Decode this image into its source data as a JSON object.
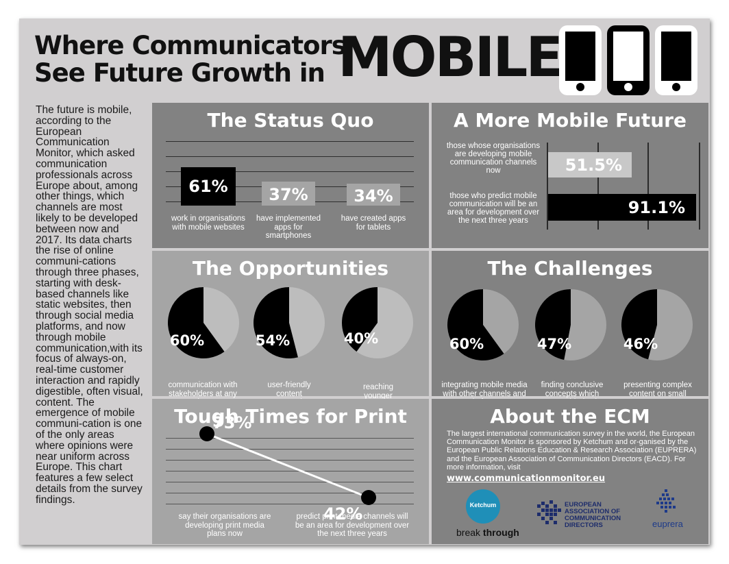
{
  "title": {
    "line1": "Where Communicators",
    "line2": "See Future Growth in",
    "highlight": "MOBILE"
  },
  "sidebar_text": "The future is mobile, according to the European Communication Monitor, which asked communication professionals across Europe about, among other things, which channels are most likely to be developed between now and 2017. Its data charts the rise of online communi-cations through three phases, starting with desk-based channels like static websites, then through social media platforms, and now through mobile communication,with its focus of always-on, real-time customer interaction and rapidly digestible, often visual, content. The emergence of mobile communi-cation is one of the only areas where opinions were near uniform across Europe. This chart features a few select details from the survey findings.",
  "colors": {
    "panel_dark": "#828282",
    "panel_light": "#a5a5a5",
    "black": "#000000",
    "light_bar": "#c8c8c8"
  },
  "icons": [
    "phone-icon-white",
    "phone-icon-black",
    "phone-icon-white"
  ],
  "chart_data": [
    {
      "type": "bar",
      "title": "The Status Quo",
      "categories": [
        "work in organisations with mobile websites",
        "have implemented apps for smartphones",
        "have created apps for tablets"
      ],
      "values": [
        61,
        37,
        34
      ],
      "labels": [
        "61%",
        "37%",
        "34%"
      ],
      "ylim": [
        0,
        100
      ]
    },
    {
      "type": "bar",
      "title": "A More Mobile Future",
      "orientation": "horizontal",
      "categories": [
        "those whose organisations are developing mobile communication channels now",
        "those who predict mobile communication will be an area for development over the next three years"
      ],
      "values": [
        51.5,
        91.1
      ],
      "labels": [
        "51.5%",
        "91.1%"
      ],
      "xlim": [
        0,
        100
      ]
    },
    {
      "type": "pie",
      "title": "The Opportunities",
      "categories": [
        "communication with stakeholders at any time",
        "user-friendly content presentation",
        "reaching younger publics"
      ],
      "values": [
        60,
        54,
        40
      ],
      "labels": [
        "60%",
        "54%",
        "40%"
      ]
    },
    {
      "type": "pie",
      "title": "The Challenges",
      "categories": [
        "integrating mobile media with other channels and platforms",
        "finding conclusive concepts which create added value",
        "presenting complex content on small screens"
      ],
      "values": [
        60,
        47,
        46
      ],
      "labels": [
        "60%",
        "47%",
        "46%"
      ]
    },
    {
      "type": "line",
      "title": "Tough Times for Print",
      "categories": [
        "say their organisations are developing print media plans now",
        "predict print media channels will be an area for development over the next three years"
      ],
      "values": [
        73,
        42
      ],
      "labels": [
        "73%",
        "42%"
      ],
      "ylim": [
        0,
        100
      ]
    }
  ],
  "about": {
    "title": "About the ECM",
    "text": "The largest international communication survey in the world, the European Communication Monitor is sponsored by Ketchum and or-ganised by the European Public Relations Education & Research Association (EUPRERA) and the European Association of Communication Directors (EACD).  For more information, visit",
    "link": "www.communicationmonitor.eu",
    "logos": {
      "ketchum": "Ketchum",
      "breakthrough_1": "break",
      "breakthrough_2": "through",
      "eacd_lines": [
        "EUROPEAN",
        "ASSOCIATION OF",
        "COMMUNICATION",
        "DIRECTORS"
      ],
      "euprera": "euprera"
    }
  }
}
